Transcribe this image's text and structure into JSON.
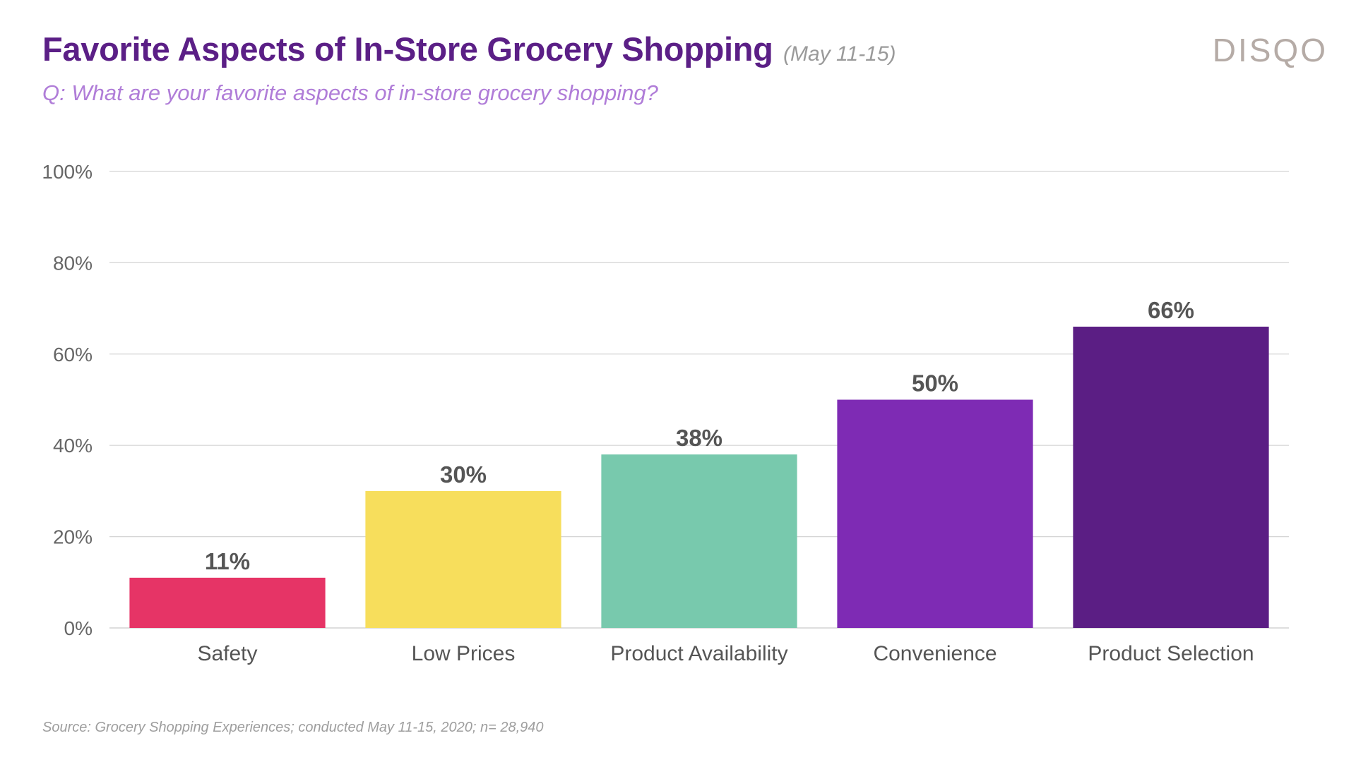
{
  "header": {
    "title": "Favorite Aspects of In-Store Grocery Shopping",
    "date": "(May 11-15)",
    "subtitle": "Q: What are your favorite aspects of in-store grocery shopping?",
    "logo": "DISQO"
  },
  "footer": {
    "source": "Source: Grocery Shopping Experiences; conducted May 11-15, 2020; n= 28,940"
  },
  "chart_data": {
    "type": "bar",
    "title": "Favorite Aspects of In-Store Grocery Shopping",
    "xlabel": "",
    "ylabel": "",
    "ylim": [
      0,
      100
    ],
    "yticks": [
      0,
      20,
      40,
      60,
      80,
      100
    ],
    "ytick_labels": [
      "0%",
      "20%",
      "40%",
      "60%",
      "80%",
      "100%"
    ],
    "grid": true,
    "categories": [
      "Safety",
      "Low Prices",
      "Product Availability",
      "Convenience",
      "Product Selection"
    ],
    "values": [
      11,
      30,
      38,
      50,
      66
    ],
    "value_labels": [
      "11%",
      "30%",
      "38%",
      "50%",
      "66%"
    ],
    "colors": [
      "#e63466",
      "#f7de5c",
      "#78c9ad",
      "#7e2bb4",
      "#5b1e84"
    ],
    "grid_color": "#d4d4d4"
  }
}
